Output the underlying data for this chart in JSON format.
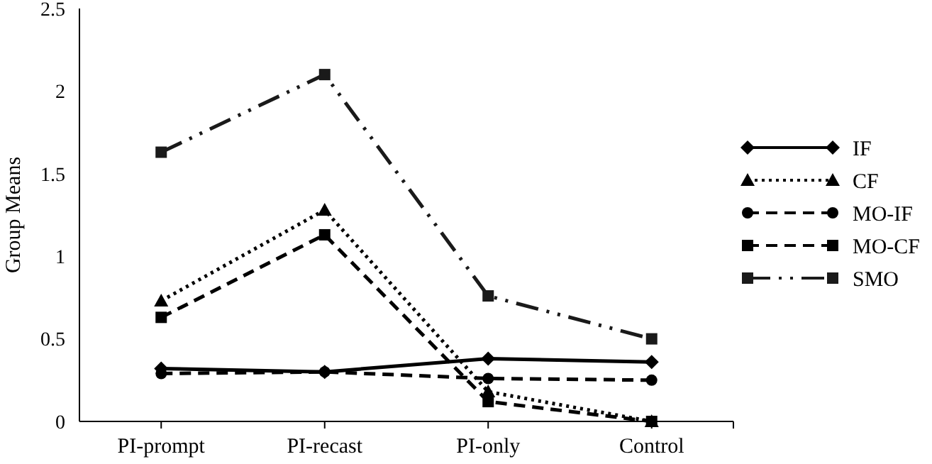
{
  "chart_data": {
    "type": "line",
    "ylabel": "Group Means",
    "categories": [
      "PI-prompt",
      "PI-recast",
      "PI-only",
      "Control"
    ],
    "ylim": [
      0,
      2.5
    ],
    "yticks": [
      0,
      0.5,
      1,
      1.5,
      2,
      2.5
    ],
    "grid": false,
    "legend": "right",
    "series": [
      {
        "name": "IF",
        "color": "#000000",
        "marker": "diamond",
        "line_style": "solid",
        "values": [
          0.32,
          0.3,
          0.38,
          0.36
        ]
      },
      {
        "name": "CF",
        "color": "#000000",
        "marker": "triangle",
        "line_style": "dotted",
        "values": [
          0.73,
          1.28,
          0.18,
          0
        ]
      },
      {
        "name": "MO-IF",
        "color": "#000000",
        "marker": "circle",
        "line_style": "dashed",
        "values": [
          0.29,
          0.3,
          0.26,
          0.25
        ]
      },
      {
        "name": "MO-CF",
        "color": "#000000",
        "marker": "square",
        "line_style": "dashed",
        "values": [
          0.63,
          1.13,
          0.12,
          0
        ]
      },
      {
        "name": "SMO",
        "color": "#1a1a1a",
        "marker": "square",
        "line_style": "dashdot",
        "values": [
          1.63,
          2.1,
          0.76,
          0.5
        ]
      }
    ]
  }
}
